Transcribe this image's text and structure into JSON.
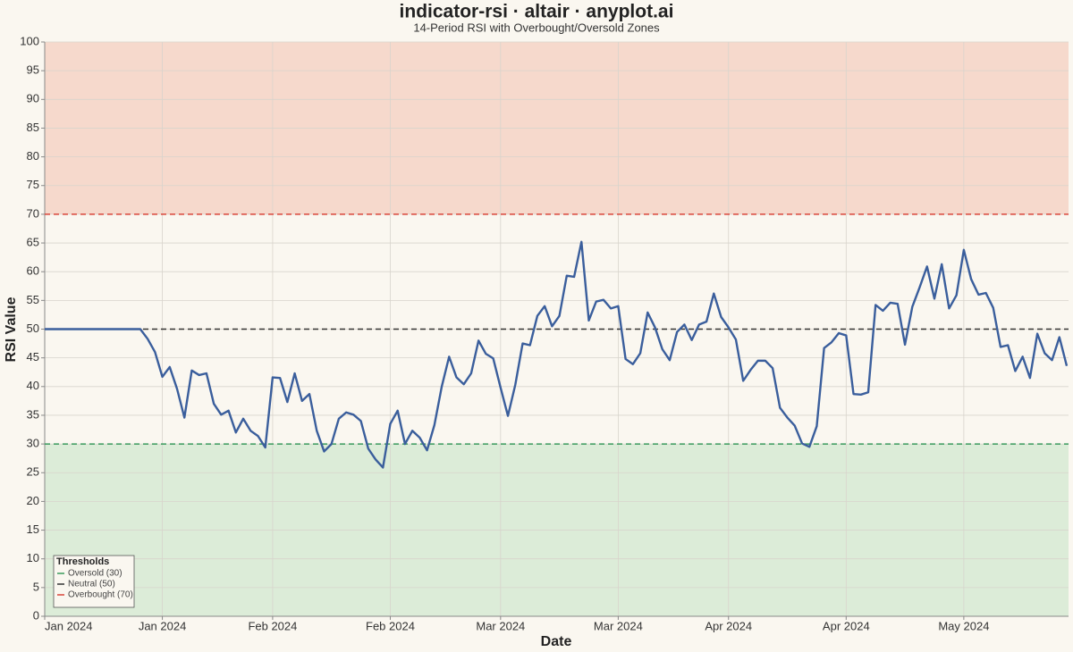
{
  "chart_data": {
    "type": "line",
    "title": "indicator-rsi · altair · anyplot.ai",
    "subtitle": "14-Period RSI with Overbought/Oversold Zones",
    "x_label": "Date",
    "y_label": "RSI Value",
    "categories": [
      "Jan 2024",
      null,
      null,
      null,
      null,
      null,
      null,
      null,
      null,
      null,
      null,
      null,
      null,
      null,
      null,
      null,
      "Jan 2024",
      null,
      null,
      null,
      null,
      null,
      null,
      null,
      null,
      null,
      null,
      null,
      null,
      null,
      null,
      "Feb 2024",
      null,
      null,
      null,
      null,
      null,
      null,
      null,
      null,
      null,
      null,
      null,
      null,
      null,
      null,
      null,
      "Feb 2024",
      null,
      null,
      null,
      null,
      null,
      null,
      null,
      null,
      null,
      null,
      null,
      null,
      null,
      null,
      "Mar 2024",
      null,
      null,
      null,
      null,
      null,
      null,
      null,
      null,
      null,
      null,
      null,
      null,
      null,
      null,
      null,
      "Mar 2024",
      null,
      null,
      null,
      null,
      null,
      null,
      null,
      null,
      null,
      null,
      null,
      null,
      null,
      null,
      "Apr 2024",
      null,
      null,
      null,
      null,
      null,
      null,
      null,
      null,
      null,
      null,
      null,
      null,
      null,
      null,
      null,
      "Apr 2024",
      null,
      null,
      null,
      null,
      null,
      null,
      null,
      null,
      null,
      null,
      null,
      null,
      null,
      null,
      null,
      "May 2024",
      null,
      null,
      null,
      null,
      null,
      null,
      null,
      null,
      null,
      null,
      null,
      null,
      null,
      null
    ],
    "values": [
      50,
      50,
      50,
      50,
      50,
      50,
      50,
      50,
      50,
      50,
      50,
      50,
      50,
      50,
      48.3,
      46,
      41.7,
      43.4,
      39.6,
      34.6,
      42.8,
      42,
      42.3,
      37,
      35.1,
      35.8,
      32,
      34.4,
      32.3,
      31.4,
      29.4,
      41.6,
      41.5,
      37.3,
      42.3,
      37.5,
      38.7,
      32.3,
      28.7,
      30,
      34.4,
      35.5,
      35.1,
      34,
      29.2,
      27.3,
      25.9,
      33.5,
      35.8,
      30,
      32.3,
      31.1,
      28.9,
      33.3,
      40,
      45.2,
      41.6,
      40.4,
      42.3,
      48,
      45.7,
      44.9,
      39.8,
      34.9,
      40.3,
      47.5,
      47.2,
      52.3,
      54,
      50.5,
      52.3,
      59.3,
      59.1,
      65.2,
      51.5,
      54.8,
      55.1,
      53.6,
      54,
      44.8,
      43.9,
      45.8,
      52.9,
      50.3,
      46.5,
      44.6,
      49.5,
      50.8,
      48.1,
      50.8,
      51.3,
      56.2,
      52.1,
      50.3,
      48.2,
      41,
      42.9,
      44.5,
      44.5,
      43.2,
      36.3,
      34.6,
      33.2,
      30.1,
      29.5,
      33.1,
      46.7,
      47.7,
      49.3,
      48.9,
      38.7,
      38.6,
      39,
      54.2,
      53.2,
      54.6,
      54.4,
      47.3,
      53.9,
      57.3,
      60.9,
      55.3,
      61.3,
      53.6,
      55.9,
      63.8,
      58.7,
      56,
      56.3,
      53.7,
      46.9,
      47.2,
      42.7,
      45.2,
      41.5,
      49.2,
      45.8,
      44.6,
      48.6,
      43.6
    ],
    "color": "#3a5e9c",
    "ylim": [
      0,
      100
    ],
    "yticks": [
      0,
      5,
      10,
      15,
      20,
      25,
      30,
      35,
      40,
      45,
      50,
      55,
      60,
      65,
      70,
      75,
      80,
      85,
      90,
      95,
      100
    ],
    "grid": true,
    "zones": [
      {
        "from": 70,
        "to": 100,
        "color": "#f6d9cc"
      },
      {
        "from": 0,
        "to": 30,
        "color": "#dcecd8"
      }
    ],
    "legend_title": "Thresholds",
    "legend": "bottom-left",
    "thresholds": [
      {
        "name": "Oversold (30)",
        "value": 30,
        "color": "#3a9a5c"
      },
      {
        "name": "Neutral (50)",
        "value": 50,
        "color": "#333333"
      },
      {
        "name": "Overbought (70)",
        "value": 70,
        "color": "#d9453a"
      }
    ]
  }
}
